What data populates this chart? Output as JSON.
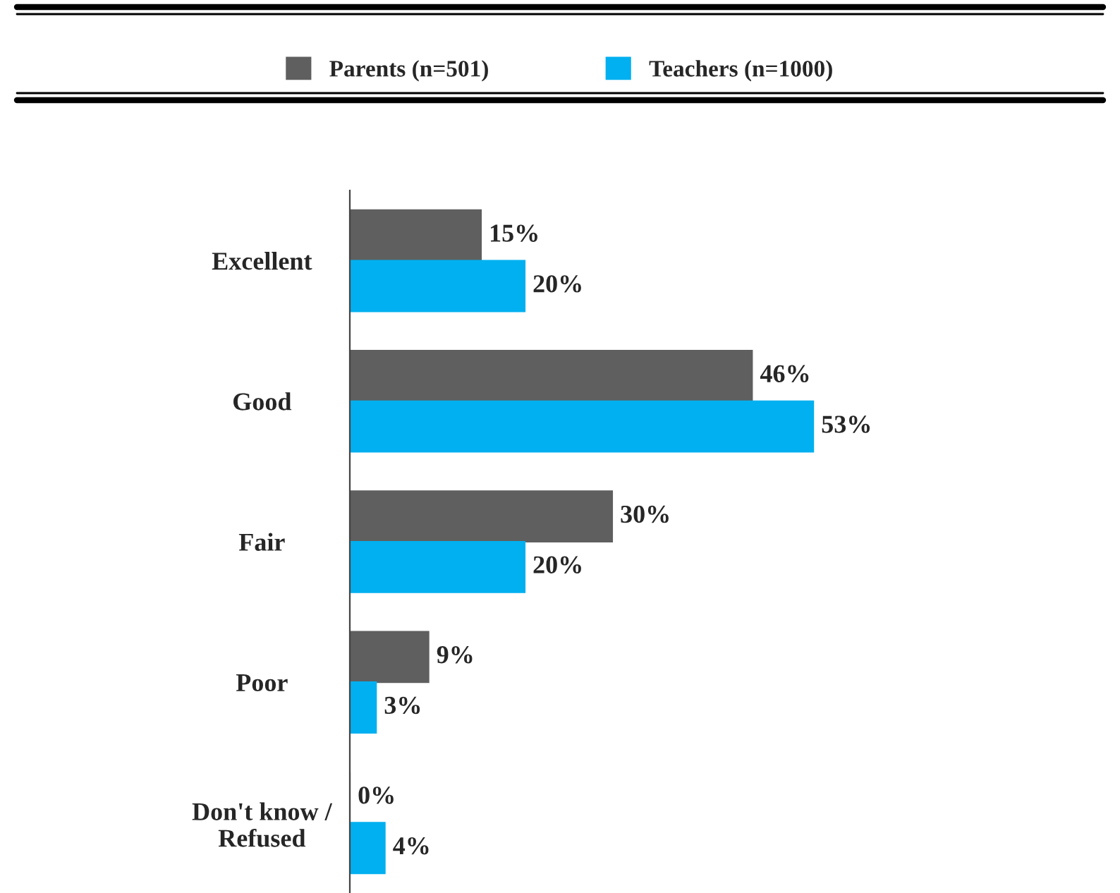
{
  "chart_data": {
    "type": "bar",
    "orientation": "horizontal",
    "categories": [
      "Excellent",
      "Good",
      "Fair",
      "Poor",
      "Don't know /\nRefused"
    ],
    "series": [
      {
        "name": "Parents (n=501)",
        "color": "#5f5f5f",
        "values": [
          15,
          46,
          30,
          9,
          0
        ],
        "value_labels": [
          "15%",
          "46%",
          "30%",
          "9%",
          "0%"
        ]
      },
      {
        "name": "Teachers (n=1000)",
        "color": "#00b0f0",
        "values": [
          20,
          53,
          20,
          3,
          4
        ],
        "value_labels": [
          "20%",
          "53%",
          "20%",
          "3%",
          "4%"
        ]
      }
    ],
    "legend": "top",
    "grid": false
  }
}
